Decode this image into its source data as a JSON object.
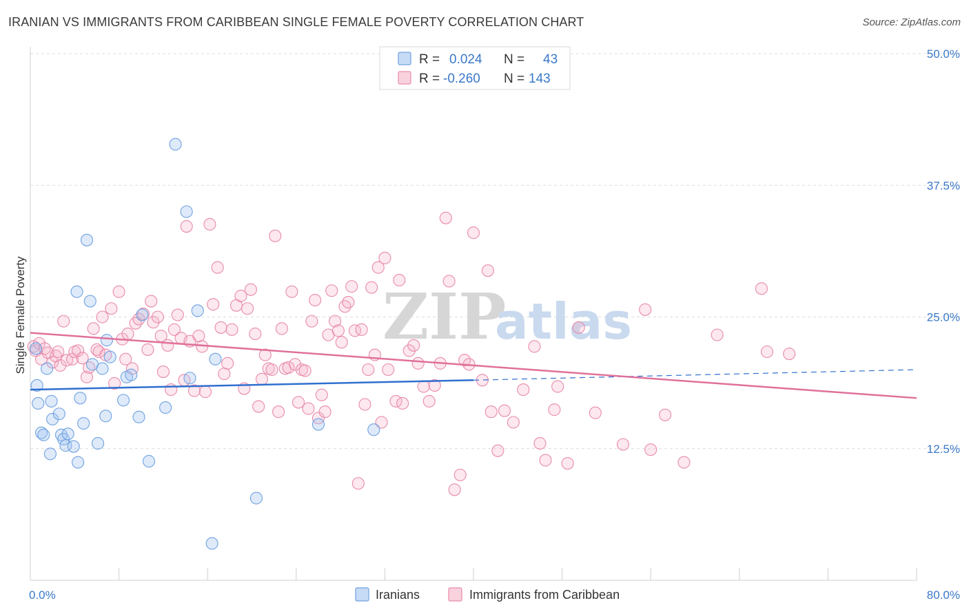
{
  "title": "IRANIAN VS IMMIGRANTS FROM CARIBBEAN SINGLE FEMALE POVERTY CORRELATION CHART",
  "source": "Source: ZipAtlas.com",
  "watermark": {
    "zip": "ZIP",
    "atlas": "atlas"
  },
  "colors": {
    "iranians": "#6fa1e0",
    "iranians_fill": "rgba(160,195,240,0.35)",
    "iranians_line": "#2f6fcf",
    "caribbean": "#e88aab",
    "caribbean_fill": "rgba(245,180,200,0.30)",
    "caribbean_line": "#e0709a",
    "axis_text": "#3a78c8",
    "grid": "#dcdcdc"
  },
  "legend": {
    "rows": [
      {
        "r_label": "R = ",
        "r_value": "0.024",
        "n_label": "N = ",
        "n_value": "43"
      },
      {
        "r_label": "R = ",
        "r_value": "-0.260",
        "n_label": "N = ",
        "n_value": "143"
      }
    ]
  },
  "chart_data": {
    "type": "scatter",
    "title": "IRANIAN VS IMMIGRANTS FROM CARIBBEAN SINGLE FEMALE POVERTY CORRELATION CHART",
    "xlabel": "",
    "ylabel": "Single Female Poverty",
    "xlim": [
      0,
      80
    ],
    "ylim": [
      0,
      50
    ],
    "x_tick_labels": [
      "0.0%",
      "80.0%"
    ],
    "y_ticks": [
      12.5,
      25.0,
      37.5,
      50.0
    ],
    "y_tick_labels": [
      "12.5%",
      "25.0%",
      "37.5%",
      "50.0%"
    ],
    "grid": "horizontal dashed",
    "legend_position": "top-center",
    "series": [
      {
        "name": "Iranians",
        "trend": {
          "x0": 0,
          "y0": 18.1,
          "x1": 40,
          "y1": 19.0,
          "dashed_to_x": 80,
          "dashed_to_y": 20.0
        },
        "points": [
          [
            0.5,
            22.0
          ],
          [
            0.6,
            18.5
          ],
          [
            0.7,
            16.8
          ],
          [
            1.0,
            14.0
          ],
          [
            1.2,
            13.8
          ],
          [
            1.5,
            20.1
          ],
          [
            1.8,
            12.0
          ],
          [
            1.9,
            17.0
          ],
          [
            2.0,
            15.3
          ],
          [
            2.6,
            15.8
          ],
          [
            2.8,
            13.8
          ],
          [
            3.0,
            13.4
          ],
          [
            3.2,
            12.8
          ],
          [
            3.4,
            13.9
          ],
          [
            3.9,
            12.7
          ],
          [
            4.3,
            11.2
          ],
          [
            4.5,
            17.3
          ],
          [
            4.8,
            14.9
          ],
          [
            4.2,
            27.4
          ],
          [
            5.1,
            32.3
          ],
          [
            5.4,
            26.5
          ],
          [
            5.6,
            20.5
          ],
          [
            6.1,
            13.0
          ],
          [
            6.8,
            15.6
          ],
          [
            6.9,
            22.8
          ],
          [
            7.2,
            21.2
          ],
          [
            6.5,
            20.1
          ],
          [
            8.4,
            17.1
          ],
          [
            8.7,
            19.3
          ],
          [
            9.1,
            19.5
          ],
          [
            9.8,
            15.5
          ],
          [
            10.1,
            25.2
          ],
          [
            10.7,
            11.3
          ],
          [
            12.2,
            16.4
          ],
          [
            13.1,
            41.4
          ],
          [
            14.1,
            35.0
          ],
          [
            14.4,
            19.2
          ],
          [
            15.1,
            25.6
          ],
          [
            16.4,
            3.5
          ],
          [
            16.7,
            21.0
          ],
          [
            20.4,
            7.8
          ],
          [
            26.0,
            14.8
          ],
          [
            31.0,
            14.3
          ]
        ]
      },
      {
        "name": "Immigrants from Caribbean",
        "trend": {
          "x0": 0,
          "y0": 23.5,
          "x1": 80,
          "y1": 17.3
        },
        "points": [
          [
            0.3,
            22.2
          ],
          [
            0.5,
            21.8
          ],
          [
            0.8,
            22.5
          ],
          [
            1.0,
            21.0
          ],
          [
            1.3,
            22.0
          ],
          [
            1.6,
            21.6
          ],
          [
            2.0,
            20.7
          ],
          [
            2.3,
            21.3
          ],
          [
            2.5,
            21.7
          ],
          [
            2.7,
            20.4
          ],
          [
            3.0,
            24.6
          ],
          [
            3.3,
            20.9
          ],
          [
            3.8,
            21.0
          ],
          [
            4.0,
            21.7
          ],
          [
            4.3,
            21.8
          ],
          [
            4.7,
            21.1
          ],
          [
            5.1,
            19.3
          ],
          [
            5.3,
            20.2
          ],
          [
            5.7,
            23.9
          ],
          [
            6.0,
            21.9
          ],
          [
            6.2,
            21.7
          ],
          [
            6.5,
            25.0
          ],
          [
            6.8,
            21.4
          ],
          [
            7.3,
            25.8
          ],
          [
            7.6,
            18.7
          ],
          [
            8.0,
            27.4
          ],
          [
            8.3,
            22.9
          ],
          [
            8.6,
            21.0
          ],
          [
            8.8,
            23.4
          ],
          [
            9.2,
            20.1
          ],
          [
            9.5,
            24.4
          ],
          [
            9.8,
            24.8
          ],
          [
            10.2,
            25.3
          ],
          [
            10.6,
            21.9
          ],
          [
            10.9,
            26.5
          ],
          [
            11.1,
            24.5
          ],
          [
            11.5,
            25.0
          ],
          [
            11.8,
            23.2
          ],
          [
            12.0,
            19.8
          ],
          [
            12.4,
            22.3
          ],
          [
            12.7,
            18.1
          ],
          [
            13.0,
            23.8
          ],
          [
            13.3,
            25.2
          ],
          [
            13.6,
            23.0
          ],
          [
            13.9,
            19.0
          ],
          [
            14.1,
            33.6
          ],
          [
            14.4,
            22.7
          ],
          [
            14.8,
            18.0
          ],
          [
            15.2,
            23.2
          ],
          [
            15.5,
            22.2
          ],
          [
            15.8,
            17.9
          ],
          [
            16.2,
            33.8
          ],
          [
            16.5,
            26.2
          ],
          [
            16.9,
            29.7
          ],
          [
            17.2,
            24.0
          ],
          [
            17.5,
            19.6
          ],
          [
            17.8,
            20.6
          ],
          [
            18.2,
            23.8
          ],
          [
            18.6,
            26.1
          ],
          [
            19.0,
            27.0
          ],
          [
            19.3,
            18.2
          ],
          [
            19.6,
            25.8
          ],
          [
            19.9,
            27.6
          ],
          [
            20.3,
            23.4
          ],
          [
            20.6,
            16.5
          ],
          [
            20.9,
            19.1
          ],
          [
            21.2,
            21.4
          ],
          [
            21.5,
            20.1
          ],
          [
            21.8,
            20.0
          ],
          [
            22.1,
            32.7
          ],
          [
            22.4,
            16.0
          ],
          [
            22.7,
            23.9
          ],
          [
            23.0,
            20.1
          ],
          [
            23.3,
            20.2
          ],
          [
            23.6,
            27.4
          ],
          [
            23.9,
            20.5
          ],
          [
            24.2,
            16.9
          ],
          [
            24.5,
            20.0
          ],
          [
            24.8,
            19.9
          ],
          [
            25.1,
            16.3
          ],
          [
            25.4,
            24.6
          ],
          [
            25.7,
            26.6
          ],
          [
            26.0,
            15.4
          ],
          [
            26.3,
            17.6
          ],
          [
            26.6,
            16.0
          ],
          [
            26.9,
            23.3
          ],
          [
            27.2,
            27.5
          ],
          [
            27.5,
            24.6
          ],
          [
            27.8,
            23.7
          ],
          [
            28.1,
            22.6
          ],
          [
            28.4,
            26.0
          ],
          [
            28.7,
            26.4
          ],
          [
            29.0,
            27.9
          ],
          [
            29.3,
            23.7
          ],
          [
            29.6,
            9.2
          ],
          [
            29.9,
            23.8
          ],
          [
            30.2,
            16.7
          ],
          [
            30.5,
            20.0
          ],
          [
            30.8,
            27.8
          ],
          [
            31.1,
            21.4
          ],
          [
            31.4,
            29.7
          ],
          [
            31.7,
            15.0
          ],
          [
            32.0,
            30.6
          ],
          [
            32.3,
            20.0
          ],
          [
            33.0,
            17.0
          ],
          [
            33.3,
            28.5
          ],
          [
            33.6,
            16.8
          ],
          [
            34.2,
            21.8
          ],
          [
            34.6,
            22.3
          ],
          [
            35.0,
            20.6
          ],
          [
            35.5,
            18.4
          ],
          [
            36.0,
            17.0
          ],
          [
            36.5,
            18.5
          ],
          [
            37.0,
            20.6
          ],
          [
            37.5,
            34.4
          ],
          [
            37.8,
            28.4
          ],
          [
            38.3,
            8.6
          ],
          [
            38.8,
            10.0
          ],
          [
            39.2,
            20.9
          ],
          [
            39.6,
            20.5
          ],
          [
            40.0,
            33.0
          ],
          [
            40.8,
            19.0
          ],
          [
            41.3,
            29.4
          ],
          [
            41.6,
            16.0
          ],
          [
            42.2,
            12.3
          ],
          [
            42.8,
            16.1
          ],
          [
            43.6,
            15.0
          ],
          [
            44.5,
            18.1
          ],
          [
            45.5,
            22.2
          ],
          [
            46.0,
            13.0
          ],
          [
            46.5,
            11.4
          ],
          [
            47.3,
            16.2
          ],
          [
            47.6,
            18.4
          ],
          [
            48.5,
            11.1
          ],
          [
            49.5,
            24.0
          ],
          [
            51.0,
            15.9
          ],
          [
            53.5,
            12.9
          ],
          [
            55.5,
            25.7
          ],
          [
            56.0,
            12.4
          ],
          [
            57.3,
            15.7
          ],
          [
            59.0,
            11.2
          ],
          [
            62.0,
            23.3
          ],
          [
            66.0,
            27.7
          ],
          [
            66.5,
            21.7
          ],
          [
            68.5,
            21.5
          ]
        ]
      }
    ]
  },
  "bottom_legend": [
    {
      "label": "Iranians"
    },
    {
      "label": "Immigrants from Caribbean"
    }
  ]
}
